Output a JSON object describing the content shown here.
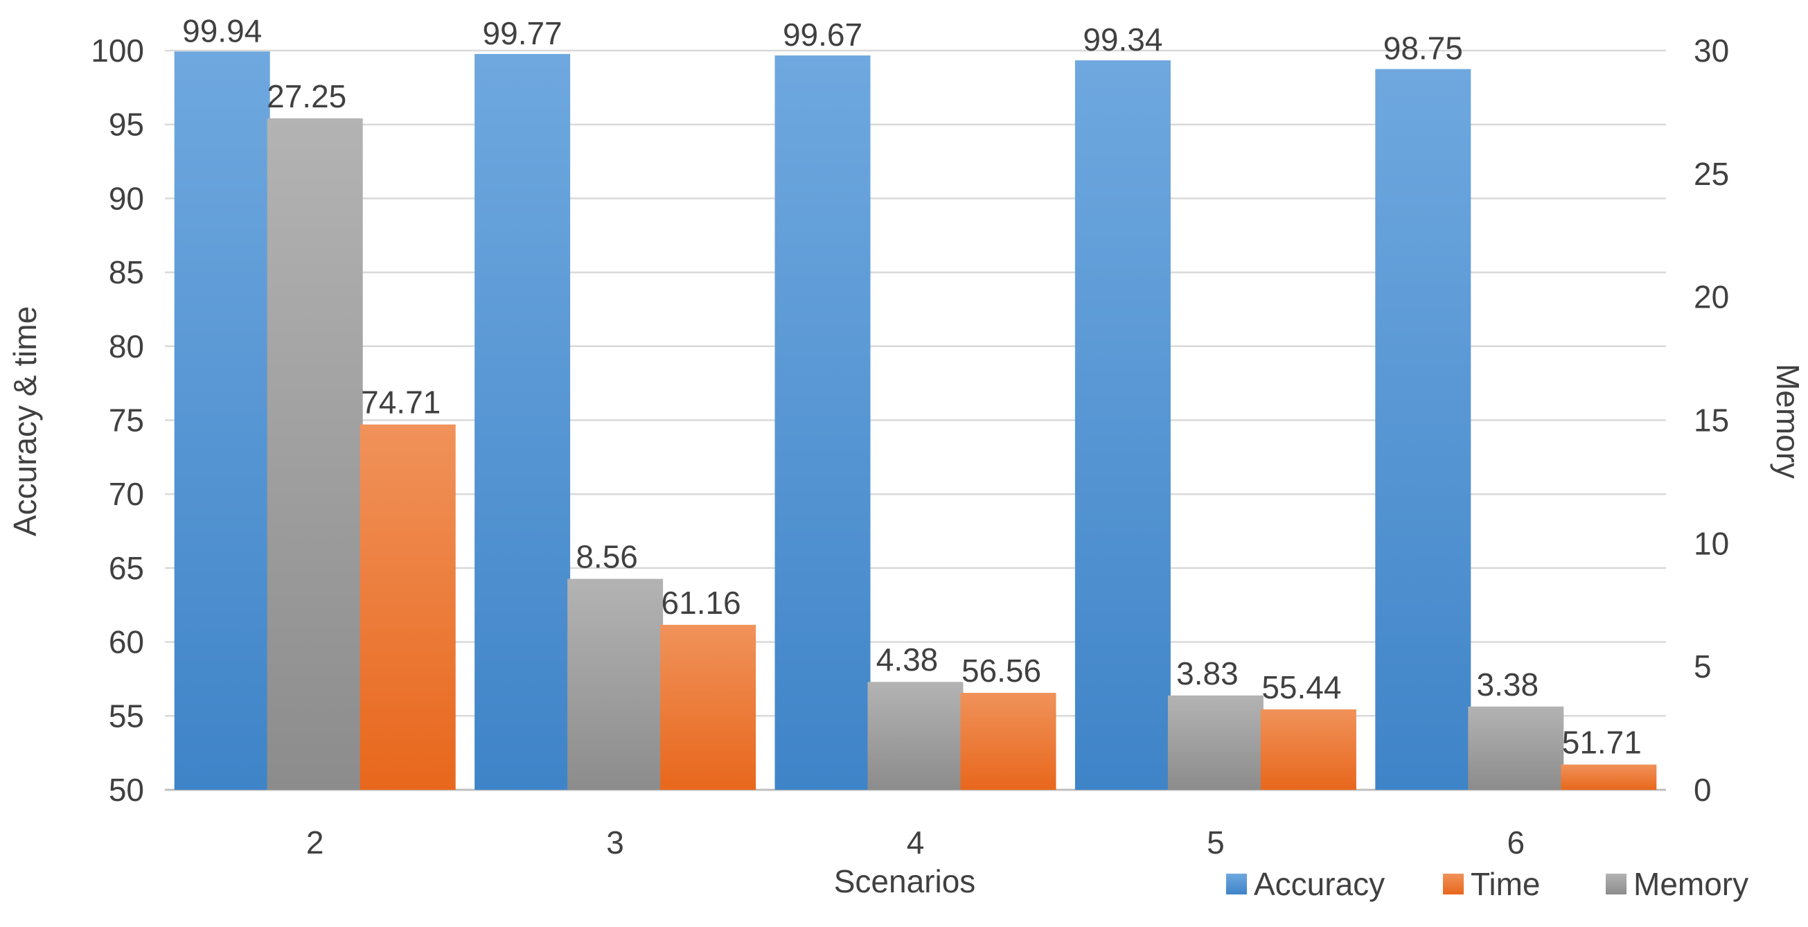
{
  "colors": {
    "accuracy": "#4a90d9",
    "time": "#ee7a2e",
    "memory": "#a0a0a0",
    "gridline": "#d9d9d9",
    "text": "#404040"
  },
  "chart_data": {
    "type": "bar",
    "categories": [
      "2",
      "3",
      "4",
      "5",
      "6"
    ],
    "series": [
      {
        "name": "Accuracy",
        "axis": "left",
        "values": [
          99.94,
          99.77,
          99.67,
          99.34,
          98.75
        ],
        "labels": [
          "99.94",
          "99.77",
          "99.67",
          "99.34",
          "98.75"
        ]
      },
      {
        "name": "Memory",
        "axis": "right",
        "values": [
          27.25,
          8.56,
          4.38,
          3.83,
          3.38
        ],
        "labels": [
          "27.25",
          "8.56",
          "4.38",
          "3.83",
          "3.38"
        ]
      },
      {
        "name": "Time",
        "axis": "left",
        "values": [
          74.71,
          61.16,
          56.56,
          55.44,
          51.71
        ],
        "labels": [
          "74.71",
          "61.16",
          "56.56",
          "55.44",
          "51.71"
        ]
      }
    ],
    "title": "",
    "xlabel": "Scenarios",
    "ylabel": "Accuracy & time",
    "y2label": "Memory",
    "ylim": [
      50,
      100
    ],
    "y2lim": [
      0,
      30
    ],
    "yticks": [
      "50",
      "55",
      "60",
      "65",
      "70",
      "75",
      "80",
      "85",
      "90",
      "95",
      "100"
    ],
    "y2ticks": [
      "0",
      "5",
      "10",
      "15",
      "20",
      "25",
      "30"
    ],
    "grid": true,
    "legend": {
      "position": "bottom-right",
      "order": [
        "Accuracy",
        "Time",
        "Memory"
      ]
    }
  }
}
